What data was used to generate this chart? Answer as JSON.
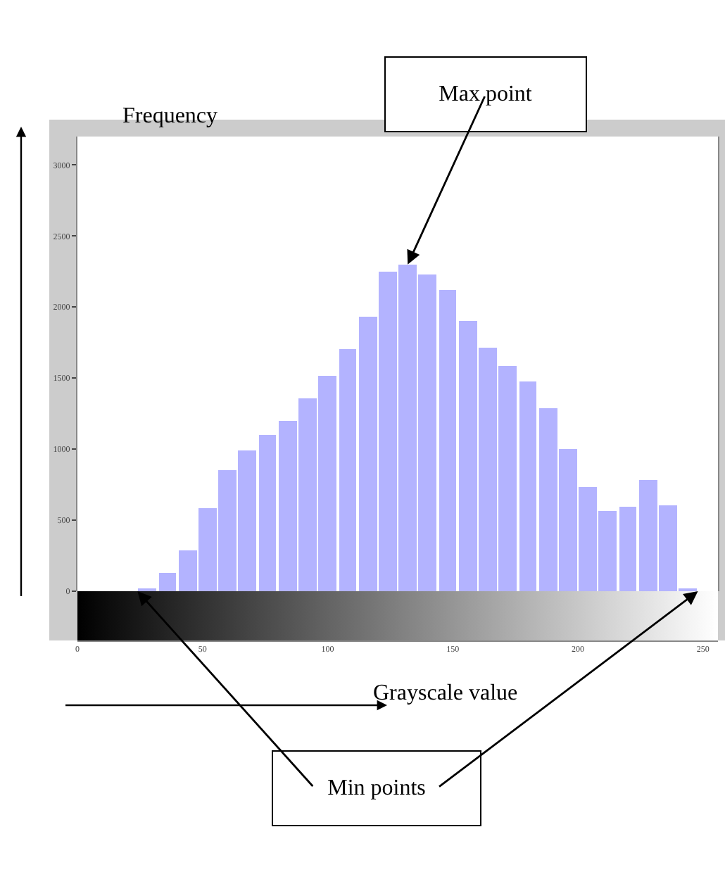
{
  "chart_data": {
    "type": "histogram",
    "xlabel": "Grayscale value",
    "ylabel": "Frequency",
    "bins": [
      0,
      8,
      16,
      24,
      32,
      40,
      48,
      56,
      64,
      72,
      80,
      88,
      96,
      104,
      112,
      120,
      128,
      136,
      144,
      152,
      160,
      168,
      176,
      184,
      192,
      200,
      208,
      216,
      224,
      232,
      240,
      248,
      256
    ],
    "values": [
      0,
      0,
      0,
      10,
      130,
      290,
      580,
      850,
      990,
      1100,
      1200,
      1360,
      1520,
      1700,
      1930,
      2250,
      2300,
      2230,
      2120,
      1900,
      1710,
      1590,
      1480,
      1290,
      1000,
      730,
      560,
      590,
      780,
      600,
      20,
      0
    ],
    "color": "#b3b3ff",
    "xlim": [
      0,
      256
    ],
    "xticks": [
      0,
      50,
      100,
      150,
      200,
      250
    ],
    "ylim": [
      0,
      3200
    ],
    "yticks": [
      0,
      500,
      1000,
      1500,
      2000,
      2500,
      3000
    ],
    "annotations": [
      {
        "text": "Max point",
        "x": 132,
        "y": 2300
      },
      "Min points"
    ]
  }
}
